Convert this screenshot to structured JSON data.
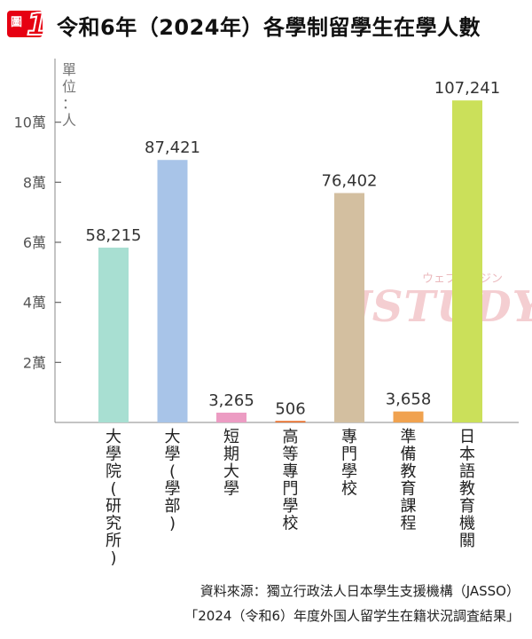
{
  "figure": {
    "badge_label": "圖",
    "badge_number": "1",
    "title": "令和6年（2024年）各學制留學生在學人數",
    "unit_label": "單位：人",
    "watermark_small": "ウェブマガジン",
    "watermark_big": "JSTUDY",
    "source_line1": "資料來源：獨立行政法人日本學生支援機構（JASSO）",
    "source_line2": "「2024（令和6）年度外国人留学生在籍状況調査結果」"
  },
  "chart_data": {
    "type": "bar",
    "title": "令和6年（2024年）各學制留學生在學人數",
    "ylabel": "單位：人",
    "xlabel": "",
    "ylim": [
      0,
      120000
    ],
    "yticks": [
      20000,
      40000,
      60000,
      80000,
      100000
    ],
    "ytick_labels": [
      "2萬",
      "4萬",
      "6萬",
      "8萬",
      "10萬"
    ],
    "grid": false,
    "categories": [
      "大學院(研究所)",
      "大學(學部)",
      "短期大學",
      "高等專門學校",
      "專門學校",
      "準備教育課程",
      "日本語教育機關"
    ],
    "values": [
      58215,
      87421,
      3265,
      506,
      76402,
      3658,
      107241
    ],
    "value_labels": [
      "58,215",
      "87,421",
      "3,265",
      "506",
      "76,402",
      "3,658",
      "107,241"
    ],
    "colors": [
      "#a8dfd2",
      "#a8c4e8",
      "#ec9cc3",
      "#e8702e",
      "#d3bfa0",
      "#f0a24f",
      "#cbe05a"
    ]
  }
}
